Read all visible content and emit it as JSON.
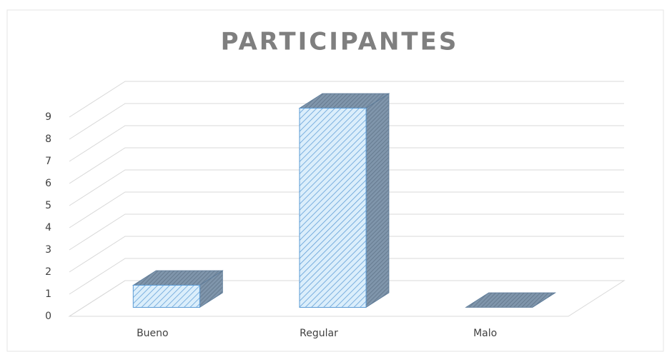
{
  "chart_data": {
    "type": "bar3d",
    "title": "PARTICIPANTES",
    "categories": [
      "Bueno",
      "Regular",
      "Malo"
    ],
    "values": [
      1,
      9,
      0
    ],
    "color": "#dbeefb",
    "ylim": [
      0,
      9
    ],
    "yticks": [
      0,
      1,
      2,
      3,
      4,
      5,
      6,
      7,
      8,
      9
    ],
    "grid": true
  }
}
